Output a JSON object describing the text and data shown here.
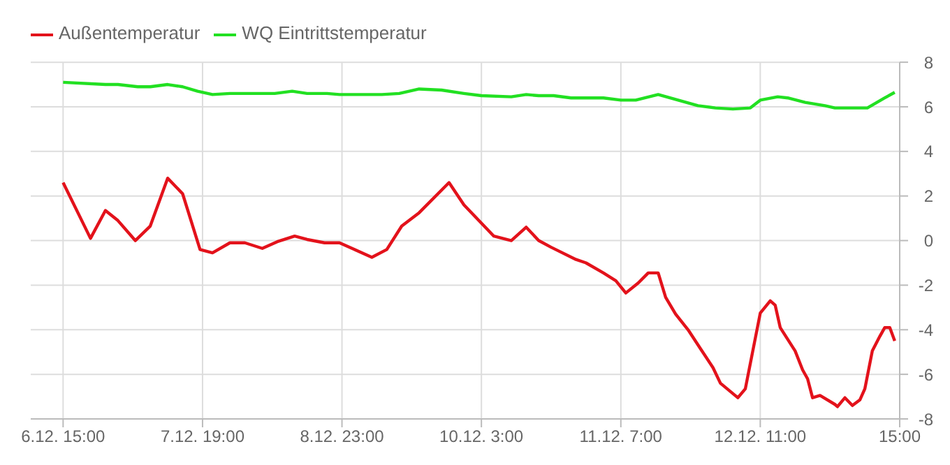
{
  "chart_data": {
    "type": "line",
    "xlim": [
      "--12-06T08:30",
      "--12-13T15:00"
    ],
    "xticks": [
      {
        "value": "--12-06T15:00",
        "label": "6.12. 15:00"
      },
      {
        "value": "--12-07T19:00",
        "label": "7.12. 19:00"
      },
      {
        "value": "--12-08T23:00",
        "label": "8.12. 23:00"
      },
      {
        "value": "--12-10T03:00",
        "label": "10.12. 3:00"
      },
      {
        "value": "--12-11T07:00",
        "label": "11.12. 7:00"
      },
      {
        "value": "--12-12T11:00",
        "label": "12.12. 11:00"
      },
      {
        "value": "--12-13T15:00",
        "label": "15:00"
      }
    ],
    "ylim": [
      -8,
      8
    ],
    "yticks": [
      -8,
      -6,
      -4,
      -2,
      0,
      2,
      4,
      6,
      8
    ],
    "grid": true,
    "legend": "top left",
    "marker": "none",
    "line_style": "solid",
    "series": [
      {
        "name": "Außentemperatur",
        "color": "#e3121b",
        "x": [
          "--12-06T15:00",
          "--12-06T20:30",
          "--12-06T23:30",
          "--12-07T02:00",
          "--12-07T05:30",
          "--12-07T08:30",
          "--12-07T12:00",
          "--12-07T15:00",
          "--12-07T18:30",
          "--12-07T21:00",
          "--12-08T00:30",
          "--12-08T03:30",
          "--12-08T07:00",
          "--12-08T10:00",
          "--12-08T13:30",
          "--12-08T16:00",
          "--12-08T19:30",
          "--12-08T22:30",
          "--12-09T01:30",
          "--12-09T05:00",
          "--12-09T08:00",
          "--12-09T11:00",
          "--12-09T14:30",
          "--12-09T20:30",
          "--12-09T23:30",
          "--12-10T05:30",
          "--12-10T09:00",
          "--12-10T12:00",
          "--12-10T14:30",
          "--12-10T17:00",
          "--12-10T22:00",
          "--12-11T00:00",
          "--12-11T03:30",
          "--12-11T06:00",
          "--12-11T08:00",
          "--12-11T10:30",
          "--12-11T12:30",
          "--12-11T14:30",
          "--12-11T16:00",
          "--12-11T18:00",
          "--12-11T20:30",
          "--12-11T23:00",
          "--12-12T01:30",
          "--12-12T03:00",
          "--12-12T06:30",
          "--12-12T08:00",
          "--12-12T11:00",
          "--12-12T13:00",
          "--12-12T14:00",
          "--12-12T15:00",
          "--12-12T18:00",
          "--12-12T19:30",
          "--12-12T20:30",
          "--12-12T21:30",
          "--12-12T23:00",
          "--12-13T02:00",
          "--12-13T02:30",
          "--12-13T04:00",
          "--12-13T05:30",
          "--12-13T07:00",
          "--12-13T08:00",
          "--12-13T09:30",
          "--12-13T11:00",
          "--12-13T12:00",
          "--12-13T13:00",
          "--12-13T14:00"
        ],
        "values": [
          2.6,
          0.1,
          1.35,
          0.9,
          0.0,
          0.65,
          2.8,
          2.1,
          -0.4,
          -0.55,
          -0.1,
          -0.1,
          -0.35,
          -0.05,
          0.2,
          0.05,
          -0.1,
          -0.1,
          -0.4,
          -0.75,
          -0.4,
          0.65,
          1.25,
          2.6,
          1.6,
          0.2,
          0.0,
          0.6,
          0.0,
          -0.3,
          -0.85,
          -1.0,
          -1.45,
          -1.8,
          -2.35,
          -1.9,
          -1.45,
          -1.45,
          -2.55,
          -3.3,
          -4.0,
          -4.85,
          -5.7,
          -6.4,
          -7.05,
          -6.65,
          -3.25,
          -2.7,
          -2.9,
          -3.9,
          -4.95,
          -5.8,
          -6.2,
          -7.05,
          -6.95,
          -7.35,
          -7.45,
          -7.05,
          -7.4,
          -7.15,
          -6.65,
          -4.95,
          -4.3,
          -3.9,
          -3.9,
          -4.5
        ]
      },
      {
        "name": "WQ Eintrittstemperatur",
        "color": "#22e022",
        "x": [
          "--12-06T15:00",
          "--12-06T23:30",
          "--12-07T02:00",
          "--12-07T06:00",
          "--12-07T08:30",
          "--12-07T12:00",
          "--12-07T15:00",
          "--12-07T18:00",
          "--12-07T21:00",
          "--12-08T00:30",
          "--12-08T09:30",
          "--12-08T13:00",
          "--12-08T16:00",
          "--12-08T20:00",
          "--12-08T22:30",
          "--12-09T07:00",
          "--12-09T10:30",
          "--12-09T14:30",
          "--12-09T19:00",
          "--12-09T23:30",
          "--12-10T03:00",
          "--12-10T09:00",
          "--12-10T12:00",
          "--12-10T14:30",
          "--12-10T17:30",
          "--12-10T21:00",
          "--12-11T03:30",
          "--12-11T07:00",
          "--12-11T10:00",
          "--12-11T14:30",
          "--12-11T18:30",
          "--12-11T22:30",
          "--12-12T02:00",
          "--12-12T05:30",
          "--12-12T09:00",
          "--12-12T11:00",
          "--12-12T14:30",
          "--12-12T16:30",
          "--12-12T20:00",
          "--12-13T00:00",
          "--12-13T02:00",
          "--12-13T08:30",
          "--12-13T12:00",
          "--12-13T14:00"
        ],
        "values": [
          7.1,
          7.0,
          7.0,
          6.9,
          6.9,
          7.0,
          6.9,
          6.7,
          6.55,
          6.6,
          6.6,
          6.7,
          6.6,
          6.6,
          6.55,
          6.55,
          6.6,
          6.8,
          6.75,
          6.6,
          6.5,
          6.45,
          6.55,
          6.5,
          6.5,
          6.4,
          6.4,
          6.3,
          6.3,
          6.55,
          6.3,
          6.05,
          5.95,
          5.9,
          5.95,
          6.3,
          6.45,
          6.4,
          6.2,
          6.05,
          5.95,
          5.95,
          6.4,
          6.65
        ]
      }
    ]
  }
}
